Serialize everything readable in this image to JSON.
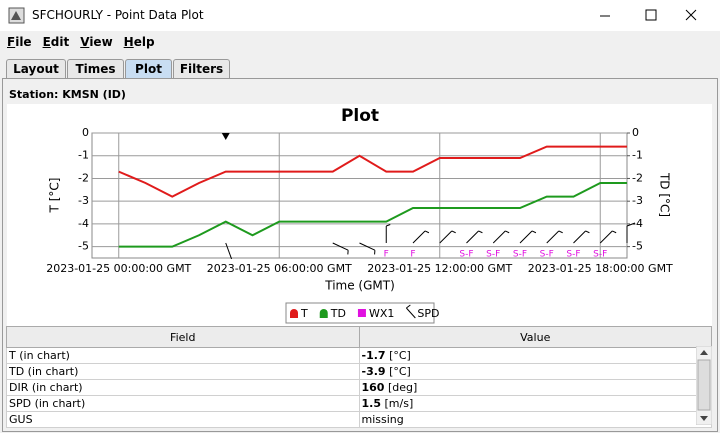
{
  "window": {
    "title": "SFCHOURLY - Point Data Plot"
  },
  "menu": [
    "File",
    "Edit",
    "View",
    "Help"
  ],
  "tabs": [
    "Layout",
    "Times",
    "Plot",
    "Filters"
  ],
  "selected_tab": 2,
  "station": "Station: KMSN (ID)",
  "chart_data": {
    "type": "line",
    "title": "Plot",
    "x_label": "Time (GMT)",
    "y_label": "T [°C]",
    "y2_label": "TD [°C]",
    "x": [
      "2023-01-25 00:00:00 GMT",
      "2023-01-25 01:00:00 GMT",
      "2023-01-25 02:00:00 GMT",
      "2023-01-25 03:00:00 GMT",
      "2023-01-25 04:00:00 GMT",
      "2023-01-25 05:00:00 GMT",
      "2023-01-25 06:00:00 GMT",
      "2023-01-25 07:00:00 GMT",
      "2023-01-25 08:00:00 GMT",
      "2023-01-25 09:00:00 GMT",
      "2023-01-25 10:00:00 GMT",
      "2023-01-25 11:00:00 GMT",
      "2023-01-25 12:00:00 GMT",
      "2023-01-25 13:00:00 GMT",
      "2023-01-25 14:00:00 GMT",
      "2023-01-25 15:00:00 GMT",
      "2023-01-25 16:00:00 GMT",
      "2023-01-25 17:00:00 GMT",
      "2023-01-25 18:00:00 GMT",
      "2023-01-25 19:00:00 GMT"
    ],
    "xticks": [
      "2023-01-25 00:00:00 GMT",
      "2023-01-25 06:00:00 GMT",
      "2023-01-25 12:00:00 GMT",
      "2023-01-25 18:00:00 GMT"
    ],
    "ylim": [
      -5.5,
      0
    ],
    "yticks": [
      0,
      -1,
      -2,
      -3,
      -4,
      -5
    ],
    "y2lim": [
      -5.5,
      0
    ],
    "y2ticks": [
      0,
      -1,
      -2,
      -3,
      -4,
      -5
    ],
    "grid": true,
    "cursor": "2023-01-25 04:00:00 GMT",
    "series": [
      {
        "name": "T",
        "color": "#e01b1b",
        "values": [
          -1.7,
          -2.2,
          -2.8,
          -2.2,
          -1.7,
          -1.7,
          -1.7,
          -1.7,
          -1.7,
          -1.0,
          -1.7,
          -1.7,
          -1.1,
          -1.1,
          -1.1,
          -1.1,
          -0.6,
          -0.6,
          -0.6,
          -0.6
        ]
      },
      {
        "name": "TD",
        "color": "#1e9a1e",
        "axis": "y2",
        "values": [
          -5.0,
          -5.0,
          -5.0,
          -4.5,
          -3.9,
          -4.5,
          -3.9,
          -3.9,
          -3.9,
          -3.9,
          -3.9,
          -3.3,
          -3.3,
          -3.3,
          -3.3,
          -3.3,
          -2.8,
          -2.8,
          -2.2,
          -2.2
        ]
      },
      {
        "name": "WX1",
        "color": "#e010e0",
        "labels": [
          null,
          null,
          null,
          null,
          null,
          null,
          null,
          null,
          null,
          null,
          "F",
          "F",
          null,
          "S-F",
          "S-F",
          "S-F",
          "S-F",
          "S-F",
          "S-F",
          null
        ]
      },
      {
        "name": "SPD",
        "color": "#000000",
        "values": [
          null,
          null,
          null,
          null,
          1.5,
          null,
          null,
          null,
          2.6,
          2.6,
          2.6,
          2.6,
          2.6,
          2.6,
          2.6,
          2.6,
          2.6,
          2.6,
          2.6,
          5.1
        ],
        "directions": [
          null,
          null,
          null,
          null,
          160,
          null,
          null,
          null,
          115,
          115,
          360,
          45,
          45,
          45,
          45,
          45,
          45,
          45,
          45,
          360
        ]
      }
    ]
  },
  "table": {
    "headers": [
      "Field",
      "Value"
    ],
    "rows": [
      {
        "field": "T (in chart)",
        "value": -1.7,
        "unit": "[°C]"
      },
      {
        "field": "TD (in chart)",
        "value": -3.9,
        "unit": "[°C]"
      },
      {
        "field": "DIR (in chart)",
        "value": 160,
        "unit": "[deg]"
      },
      {
        "field": "SPD (in chart)",
        "value": 1.5,
        "unit": "[m/s]"
      },
      {
        "field": "GUS",
        "value": "missing"
      }
    ]
  }
}
